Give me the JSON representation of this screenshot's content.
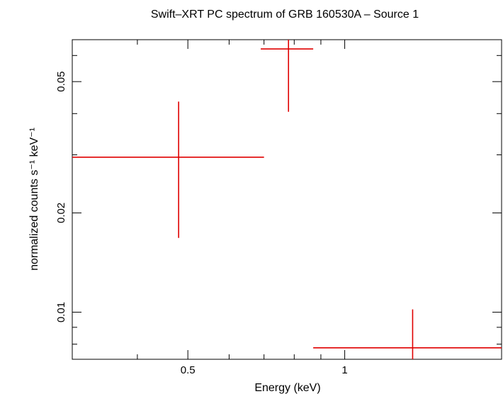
{
  "chart_data": {
    "type": "scatter",
    "title": "Swift–XRT PC spectrum of GRB 160530A – Source 1",
    "xlabel": "Energy (keV)",
    "ylabel": "normalized counts s⁻¹ keV⁻¹",
    "x_scale": "log",
    "y_scale": "log",
    "xlim": [
      0.3,
      2.0
    ],
    "ylim": [
      0.0072,
      0.067
    ],
    "x_ticks": [
      {
        "value": 0.5,
        "label": "0.5"
      },
      {
        "value": 1,
        "label": "1"
      }
    ],
    "y_ticks": [
      {
        "value": 0.01,
        "label": "0.01"
      },
      {
        "value": 0.02,
        "label": "0.02"
      },
      {
        "value": 0.05,
        "label": "0.05"
      }
    ],
    "grid": false,
    "series": [
      {
        "color": "#e00000",
        "points": [
          {
            "x": 0.48,
            "x_low": 0.3,
            "x_high": 0.7,
            "y": 0.0295,
            "y_low": 0.0168,
            "y_high": 0.0435
          },
          {
            "x": 0.78,
            "x_low": 0.69,
            "x_high": 0.87,
            "y": 0.0628,
            "y_low": 0.0405,
            "y_high": 0.067
          },
          {
            "x": 1.35,
            "x_low": 0.87,
            "x_high": 2.0,
            "y": 0.0078,
            "y_low": 0.0072,
            "y_high": 0.0102
          }
        ]
      }
    ]
  }
}
